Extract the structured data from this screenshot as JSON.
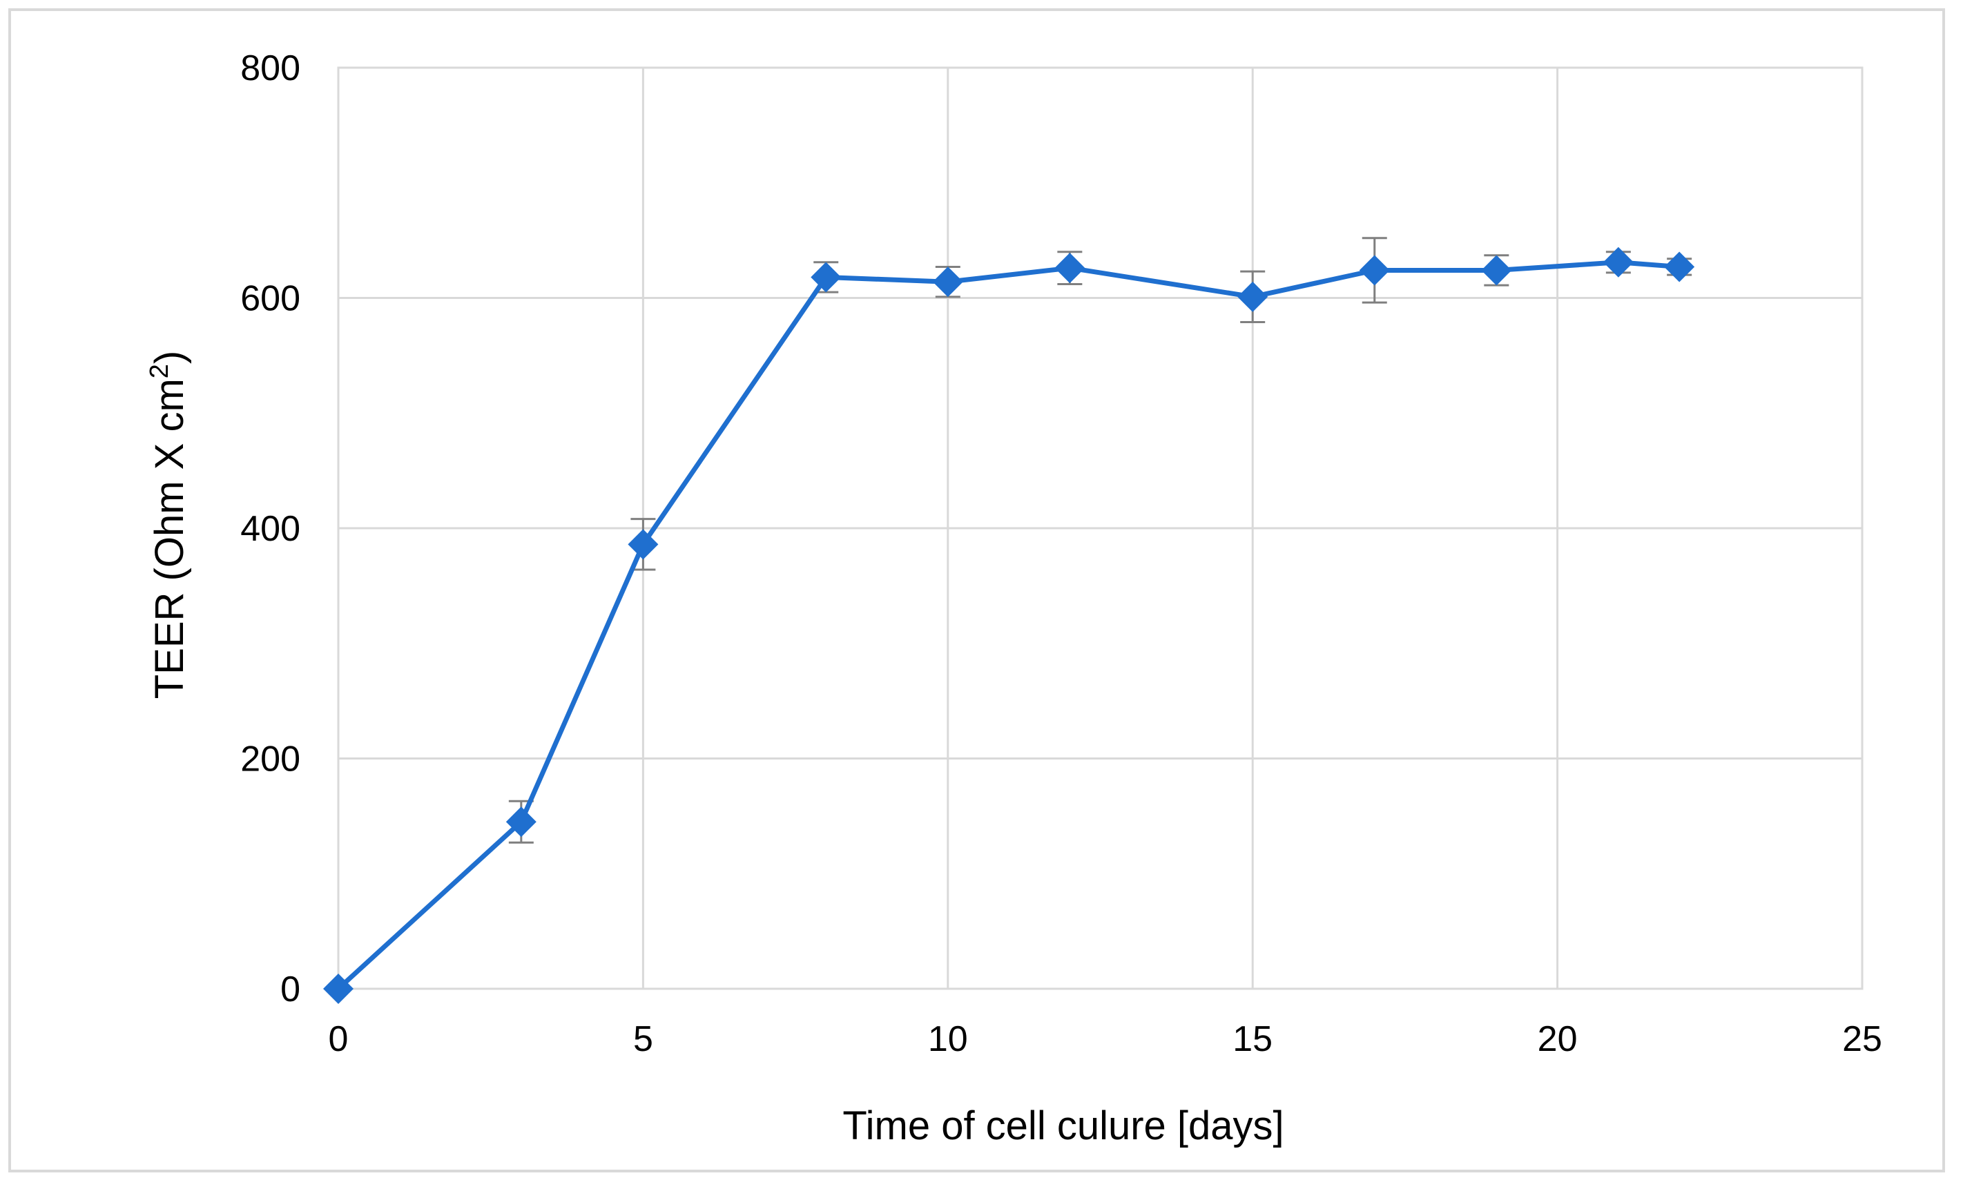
{
  "chart_data": {
    "type": "line",
    "title": "",
    "xlabel": "Time of cell culure [days]",
    "ylabel": "TEER (Ohm X cm",
    "ylabel_sup": "2",
    "ylabel_end": ")",
    "xlim": [
      0,
      25
    ],
    "ylim": [
      0,
      800
    ],
    "x_ticks": [
      "0",
      "5",
      "10",
      "15",
      "20",
      "25"
    ],
    "y_ticks": [
      "0",
      "200",
      "400",
      "600",
      "800"
    ],
    "grid": true,
    "legend": "none",
    "series": [
      {
        "color": "#1f6fcf",
        "errorbar_color": "#7f7f7f",
        "marker": "diamond",
        "x": [
          0,
          3,
          5,
          8,
          10,
          12,
          15,
          17,
          19,
          21,
          22
        ],
        "y": [
          0,
          145,
          386,
          618,
          614,
          626,
          601,
          624,
          624,
          631,
          627
        ],
        "error": [
          0,
          18,
          22,
          13,
          13,
          14,
          22,
          28,
          13,
          9,
          7
        ]
      }
    ]
  }
}
